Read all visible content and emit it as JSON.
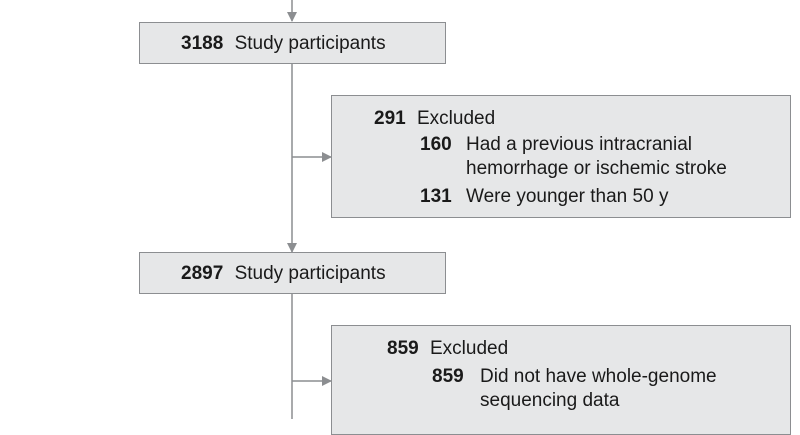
{
  "nodes": {
    "participants_1": {
      "count": "3188",
      "label": "Study participants"
    },
    "excluded_1": {
      "count": "291",
      "label": "Excluded",
      "reasons": [
        {
          "count": "160",
          "lines": [
            "Had a previous intracranial",
            "hemorrhage or ischemic stroke"
          ]
        },
        {
          "count": "131",
          "lines": [
            "Were younger than 50 y"
          ]
        }
      ]
    },
    "participants_2": {
      "count": "2897",
      "label": "Study participants"
    },
    "excluded_2": {
      "count": "859",
      "label": "Excluded",
      "reasons": [
        {
          "count": "859",
          "lines": [
            "Did not have whole-genome",
            "sequencing data"
          ]
        }
      ]
    }
  },
  "colors": {
    "box_fill": "#e6e7e8",
    "box_border": "#8c8e91",
    "line": "#8c8e91"
  }
}
